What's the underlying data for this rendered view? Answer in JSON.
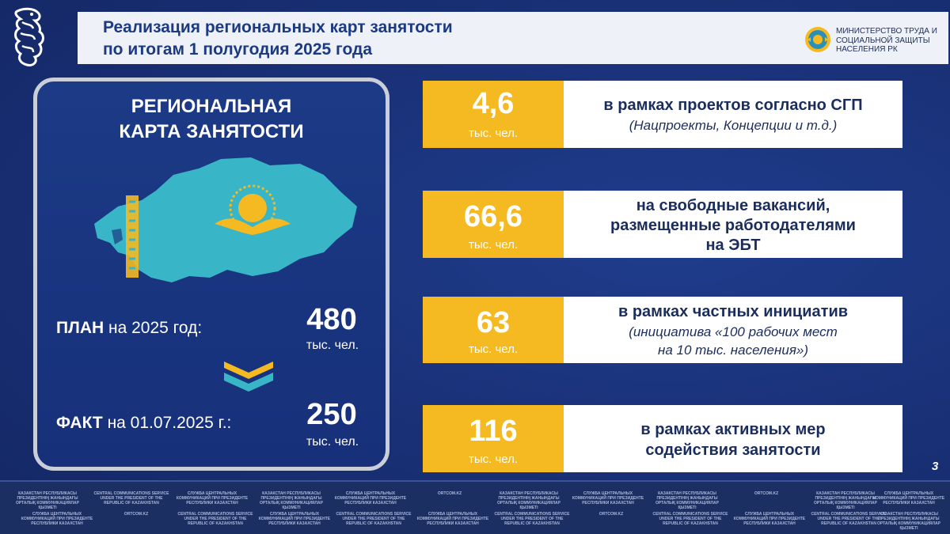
{
  "header": {
    "title_line1": "Реализация региональных карт занятости",
    "title_line2": "по итогам 1 полугодия 2025 года",
    "ministry": "МИНИСТЕРСТВО ТРУДА И\nСОЦИАЛЬНОЙ ЗАЩИТЫ\nНАСЕЛЕНИЯ РК"
  },
  "left_panel": {
    "title_line1": "РЕГИОНАЛЬНАЯ",
    "title_line2": "КАРТА ЗАНЯТОСТИ",
    "plan_bold": "ПЛАН",
    "plan_rest": " на 2025 год:",
    "plan_value": "480",
    "plan_unit": "тыс. чел.",
    "fact_bold": "ФАКТ",
    "fact_rest": " на 01.07.2025 г.:",
    "fact_value": "250",
    "fact_unit": "тыс. чел."
  },
  "cards": [
    {
      "value": "4,6",
      "unit": "тыс. чел.",
      "main": "в рамках проектов согласно СГП",
      "sub": "(Нацпроекты, Концепции и т.д.)"
    },
    {
      "value": "66,6",
      "unit": "тыс. чел.",
      "main_l1": "на свободные вакансий,",
      "main_l2": "размещенные работодателями",
      "main_l3": "на ЭБТ"
    },
    {
      "value": "63",
      "unit": "тыс. чел.",
      "main": "в рамках частных инициатив",
      "sub_l1": "(инициатива «100 рабочих мест",
      "sub_l2": "на 10 тыс. населения»)"
    },
    {
      "value": "116",
      "unit": "тыс. чел.",
      "main_l1": "в рамках активных мер",
      "main_l2": "содействия занятости"
    }
  ],
  "page_number": "3",
  "footer": {
    "w1": "КАЗАКСТАН РЕСПУБЛИКАСЫ ПРЕЗИДЕНТІНІҢ ЖАНЫНДАҒЫ ОРТАЛЫҚ КОММУНИКАЦИЯЛАР ҚЫЗМЕТІ",
    "w2": "CENTRAL COMMUNICATIONS SERVICE UNDER THE PRESIDENT OF THE REPUBLIC OF KAZAKHSTAN",
    "w3": "СЛУЖБА ЦЕНТРАЛЬНЫХ КОММУНИКАЦИЙ ПРИ ПРЕЗИДЕНТЕ РЕСПУБЛИКИ КАЗАХСТАН",
    "w4": "ORTCOM.KZ"
  },
  "colors": {
    "accent_yellow": "#f5b921",
    "navy": "#1b3a82",
    "map_teal": "#38b6c8"
  }
}
